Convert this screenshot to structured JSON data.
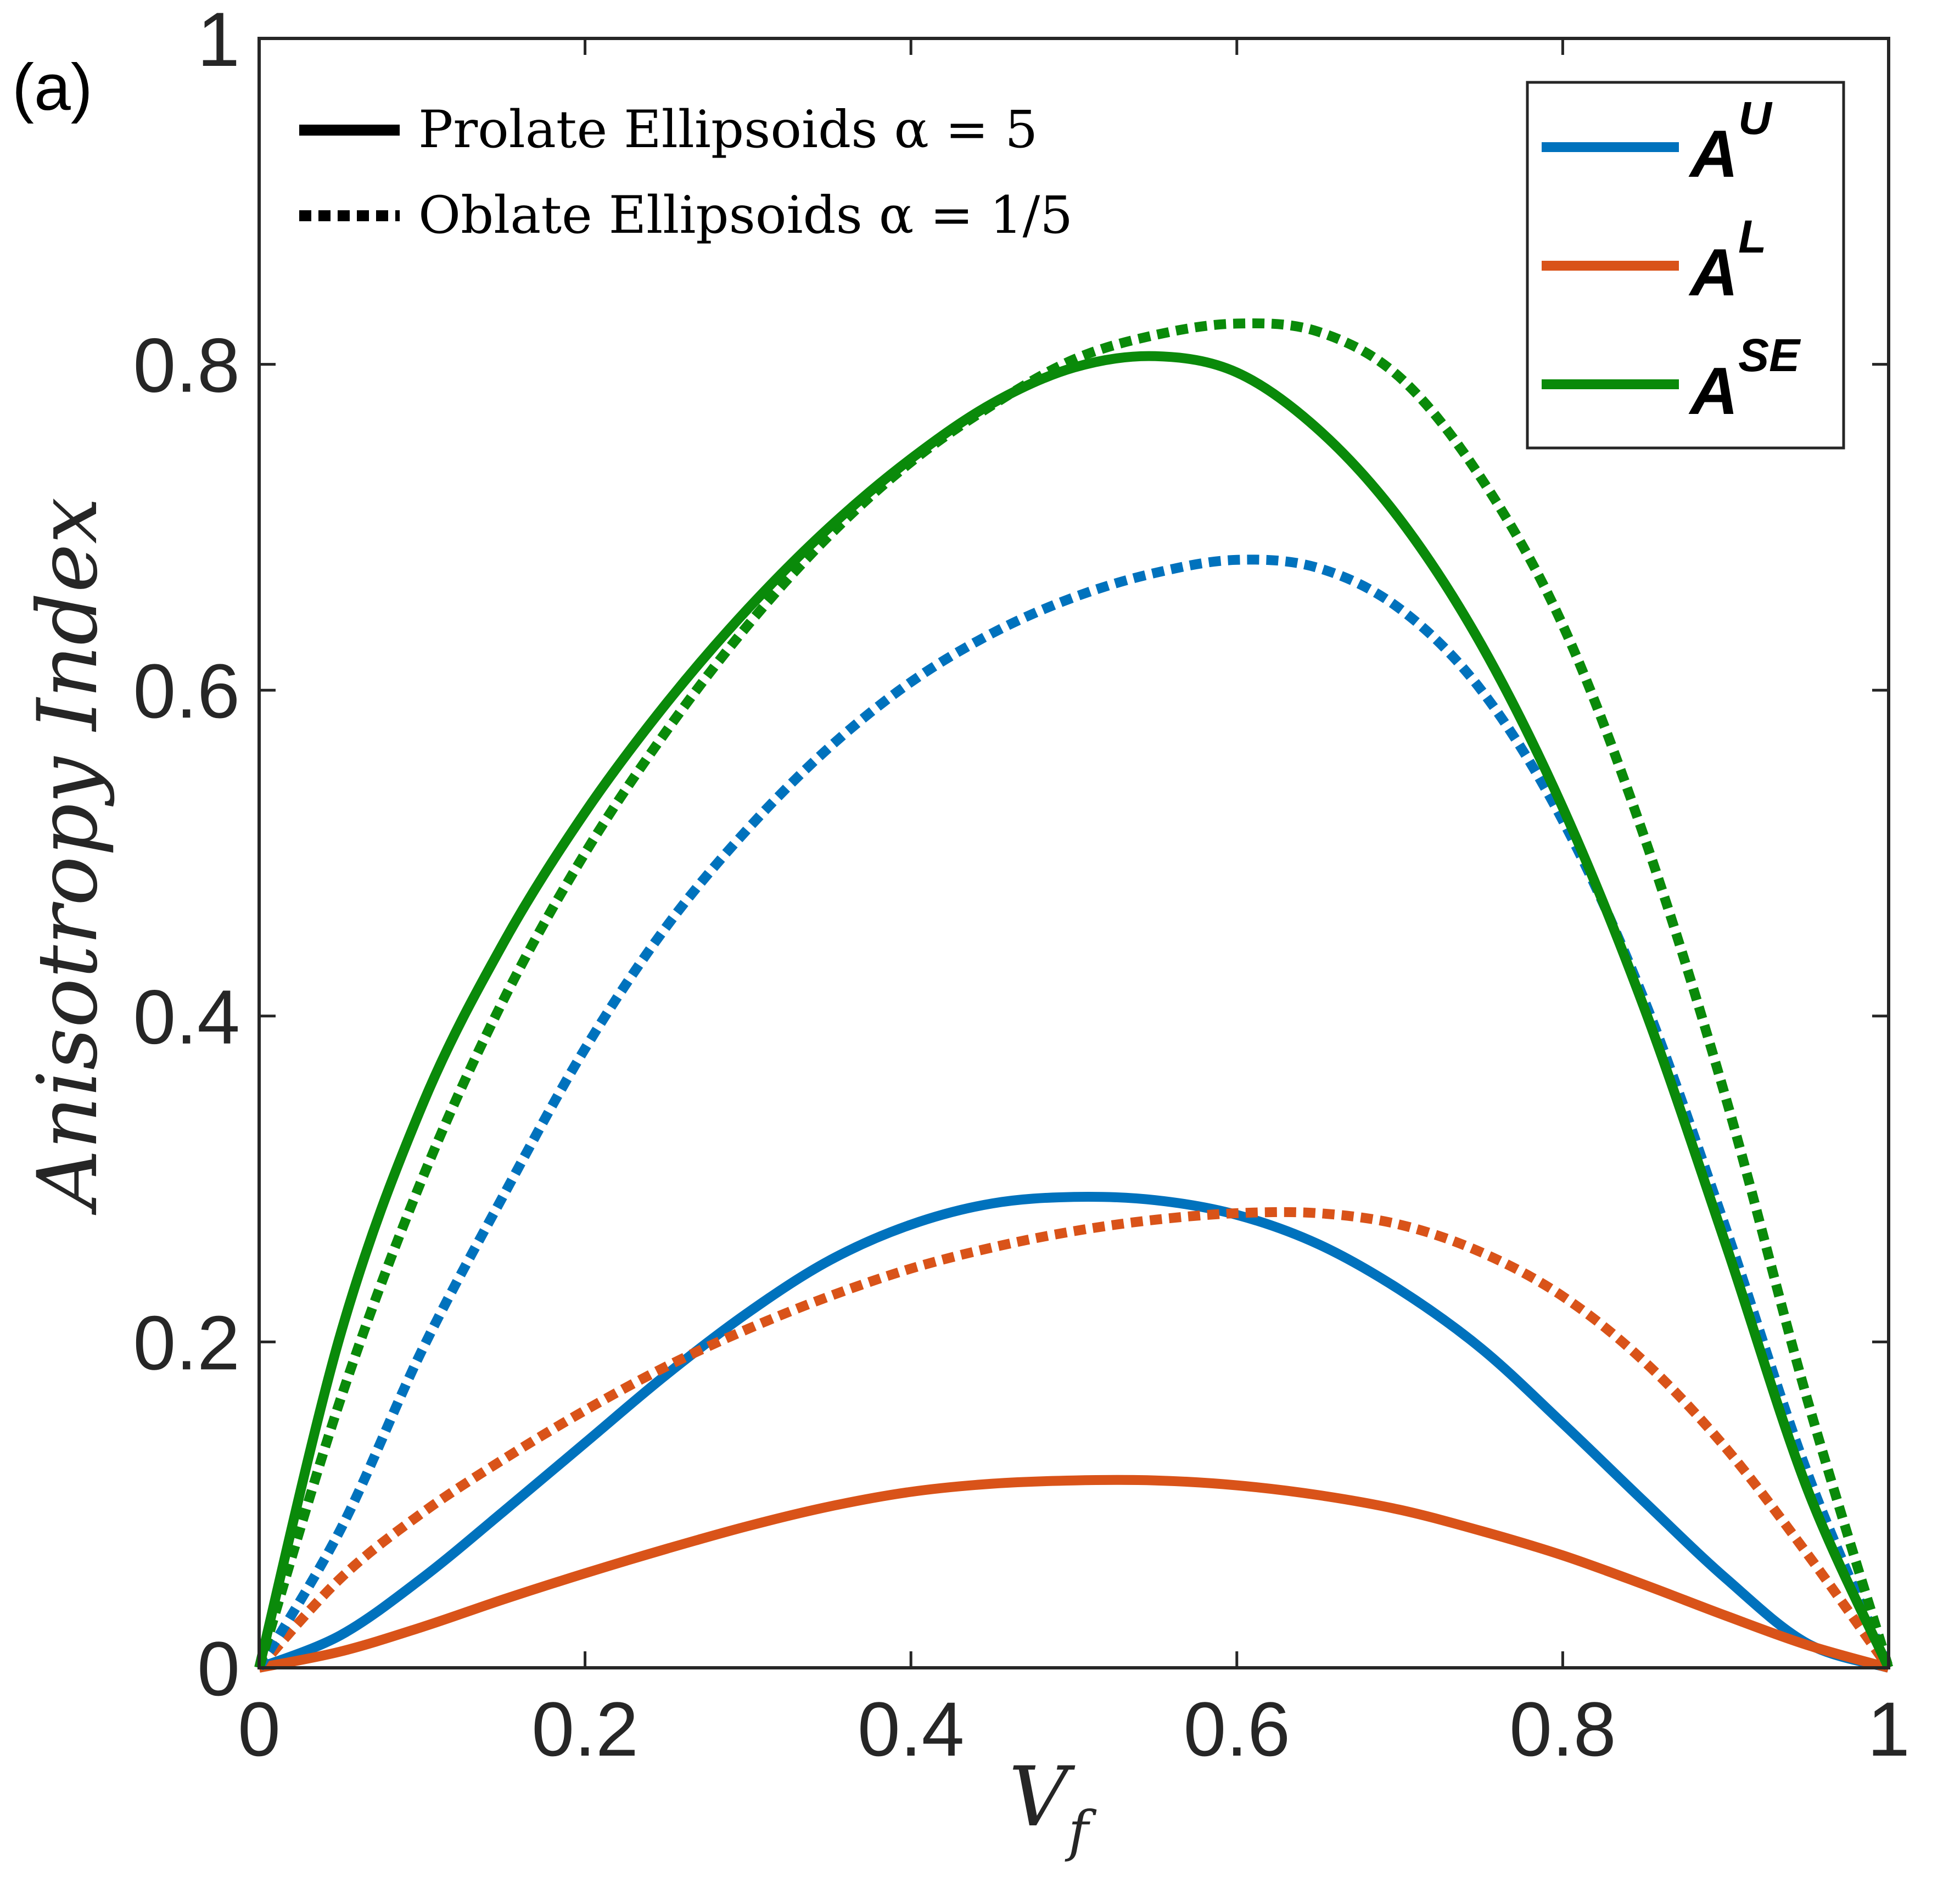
{
  "panel_label": "(a)",
  "style_legend": {
    "solid_label": "Prolate Ellipsoids α = 5",
    "dotted_label": "Oblate Ellipsoids α = 1/5"
  },
  "colors": {
    "A_U": "#0072BD",
    "A_L": "#D95319",
    "A_SE": "#0A8A0A",
    "axis": "#262626"
  },
  "chart_data": {
    "type": "line",
    "title": "",
    "xlabel": "V",
    "xlabel_sub": "f",
    "ylabel": "Anisotropy Index",
    "xlim": [
      0,
      1
    ],
    "ylim": [
      0,
      1
    ],
    "xticks": [
      "0",
      "0.2",
      "0.4",
      "0.6",
      "0.8",
      "1"
    ],
    "yticks": [
      "0",
      "0.2",
      "0.4",
      "0.6",
      "0.8",
      "1"
    ],
    "grid": false,
    "legend_position": "top-right",
    "legend": [
      {
        "key": "A_U",
        "base": "A",
        "sup": "U"
      },
      {
        "key": "A_L",
        "base": "A",
        "sup": "L"
      },
      {
        "key": "A_SE",
        "base": "A",
        "sup": "SE"
      }
    ],
    "x": [
      0,
      0.05,
      0.1,
      0.15,
      0.2,
      0.25,
      0.3,
      0.35,
      0.4,
      0.45,
      0.5,
      0.55,
      0.6,
      0.65,
      0.7,
      0.75,
      0.8,
      0.85,
      0.9,
      0.95,
      1.0
    ],
    "series": [
      {
        "name": "A^U prolate",
        "key": "A_U",
        "style": "solid",
        "values": [
          0,
          0.02,
          0.055,
          0.096,
          0.138,
          0.18,
          0.218,
          0.25,
          0.272,
          0.285,
          0.289,
          0.287,
          0.278,
          0.26,
          0.232,
          0.196,
          0.15,
          0.102,
          0.055,
          0.015,
          0
        ]
      },
      {
        "name": "A^L prolate",
        "key": "A_L",
        "style": "solid",
        "values": [
          0,
          0.01,
          0.025,
          0.042,
          0.058,
          0.073,
          0.087,
          0.099,
          0.108,
          0.113,
          0.115,
          0.115,
          0.112,
          0.106,
          0.097,
          0.084,
          0.069,
          0.051,
          0.032,
          0.014,
          0
        ]
      },
      {
        "name": "A^SE prolate",
        "key": "A_SE",
        "style": "solid",
        "values": [
          0,
          0.205,
          0.345,
          0.445,
          0.525,
          0.592,
          0.65,
          0.7,
          0.742,
          0.776,
          0.798,
          0.805,
          0.795,
          0.76,
          0.705,
          0.628,
          0.528,
          0.405,
          0.26,
          0.11,
          0
        ]
      },
      {
        "name": "A^U oblate",
        "key": "A_U",
        "style": "dotted",
        "values": [
          0,
          0.085,
          0.195,
          0.29,
          0.38,
          0.455,
          0.515,
          0.565,
          0.605,
          0.635,
          0.657,
          0.672,
          0.68,
          0.675,
          0.65,
          0.6,
          0.52,
          0.41,
          0.27,
          0.12,
          0
        ]
      },
      {
        "name": "A^L oblate",
        "key": "A_L",
        "style": "dotted",
        "values": [
          0,
          0.055,
          0.095,
          0.128,
          0.158,
          0.185,
          0.208,
          0.228,
          0.245,
          0.258,
          0.268,
          0.275,
          0.279,
          0.279,
          0.272,
          0.255,
          0.228,
          0.188,
          0.135,
          0.07,
          0
        ]
      },
      {
        "name": "A^SE oblate",
        "key": "A_SE",
        "style": "dotted",
        "values": [
          0,
          0.165,
          0.3,
          0.41,
          0.5,
          0.575,
          0.64,
          0.695,
          0.74,
          0.775,
          0.803,
          0.818,
          0.825,
          0.82,
          0.792,
          0.73,
          0.64,
          0.51,
          0.35,
          0.165,
          0
        ]
      }
    ]
  }
}
